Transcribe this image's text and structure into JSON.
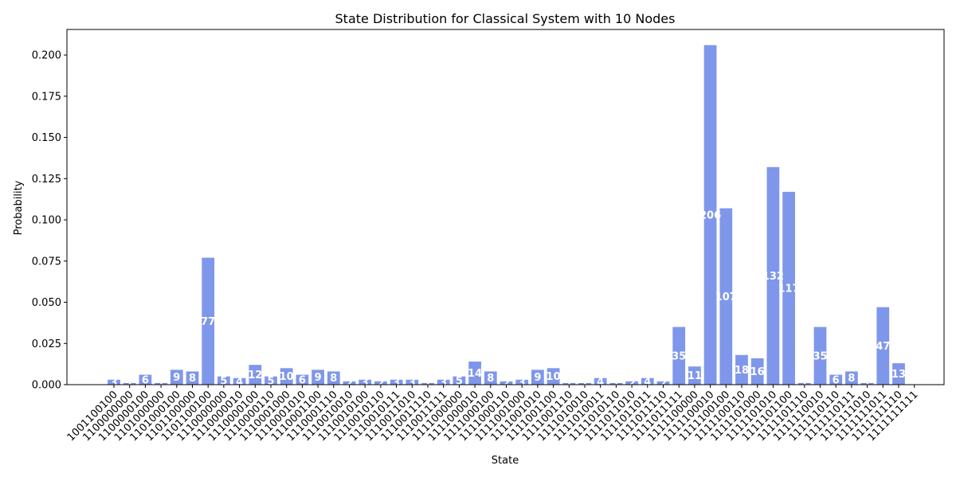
{
  "chart_data": {
    "type": "bar",
    "title": "State Distribution for Classical System with 10 Nodes",
    "xlabel": "State",
    "ylabel": "Probability",
    "ylim": [
      0,
      0.2155
    ],
    "yticks": [
      "0.000",
      "0.025",
      "0.050",
      "0.075",
      "0.100",
      "0.125",
      "0.150",
      "0.175",
      "0.200"
    ],
    "yticks_values": [
      0,
      0.025,
      0.05,
      0.075,
      0.1,
      0.125,
      0.15,
      0.175,
      0.2
    ],
    "bar_color": "#7f97ea",
    "label_color": "#ffffff",
    "grid": false,
    "categories": [
      "1001100100",
      "1100000000",
      "1100000100",
      "1101000000",
      "1101000100",
      "1101100000",
      "1101100100",
      "1110000000",
      "1110000010",
      "1110000100",
      "1110000110",
      "1110001000",
      "1110001010",
      "1110001100",
      "1110001110",
      "1110010010",
      "1110010100",
      "1110010110",
      "1110010111",
      "1110011010",
      "1110011110",
      "1110011111",
      "1111000000",
      "1111000010",
      "1111000100",
      "1111000110",
      "1111001000",
      "1111001010",
      "1111001100",
      "1111001110",
      "1111010010",
      "1111010011",
      "1111010110",
      "1111011010",
      "1111011011",
      "1111011110",
      "1111011111",
      "1111100000",
      "1111100010",
      "1111100100",
      "1111100110",
      "1111101000",
      "1111101010",
      "1111101100",
      "1111101110",
      "1111110010",
      "1111110110",
      "1111110111",
      "1111111010",
      "1111111011",
      "1111111110",
      "1111111111"
    ],
    "values": [
      0.003,
      0.001,
      0.006,
      0.001,
      0.009,
      0.008,
      0.077,
      0.005,
      0.004,
      0.012,
      0.005,
      0.01,
      0.006,
      0.009,
      0.008,
      0.002,
      0.003,
      0.002,
      0.003,
      0.003,
      0.001,
      0.003,
      0.005,
      0.014,
      0.008,
      0.002,
      0.003,
      0.009,
      0.01,
      0.001,
      0.001,
      0.004,
      0.001,
      0.002,
      0.004,
      0.002,
      0.035,
      0.011,
      0.206,
      0.107,
      0.018,
      0.016,
      0.132,
      0.117,
      0.001,
      0.035,
      0.006,
      0.008,
      0.001,
      0.047,
      0.013,
      0
    ],
    "bar_labels": [
      "3",
      "1",
      "6",
      "1",
      "9",
      "8",
      "77",
      "5",
      "4",
      "12",
      "5",
      "10",
      "6",
      "9",
      "8",
      "2",
      "3",
      "2",
      "3",
      "3",
      "1",
      "3",
      "5",
      "14",
      "8",
      "2",
      "3",
      "9",
      "10",
      "1",
      "1",
      "4",
      "1",
      "2",
      "4",
      "2",
      "35",
      "11",
      "206",
      "107",
      "18",
      "16",
      "132",
      "117",
      "1",
      "35",
      "6",
      "8",
      "1",
      "47",
      "13",
      ""
    ]
  }
}
